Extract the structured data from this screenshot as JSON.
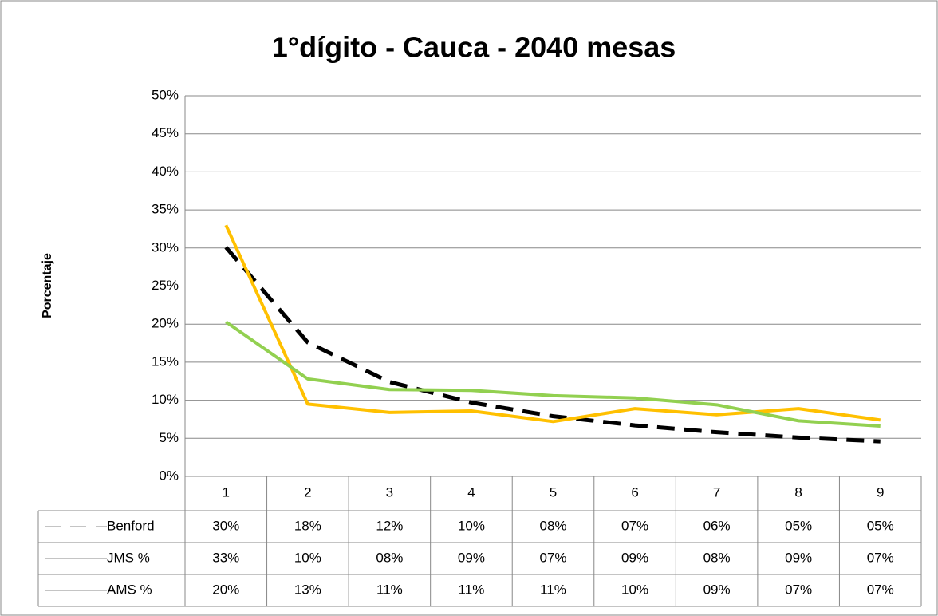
{
  "chart_data": {
    "type": "line",
    "title": "1°dígito - Cauca - 2040 mesas",
    "y_label": "Porcentaje",
    "categories": [
      "1",
      "2",
      "3",
      "4",
      "5",
      "6",
      "7",
      "8",
      "9"
    ],
    "series": [
      {
        "name": "Benford",
        "color": "#000000",
        "dashed": true,
        "values": [
          30.1,
          17.6,
          12.4,
          9.7,
          7.9,
          6.7,
          5.8,
          5.1,
          4.6
        ],
        "value_labels": [
          "30%",
          "18%",
          "12%",
          "10%",
          "08%",
          "07%",
          "06%",
          "05%",
          "05%"
        ]
      },
      {
        "name": "JMS %",
        "color": "#ffc000",
        "dashed": false,
        "values": [
          33,
          9.5,
          8.4,
          8.6,
          7.2,
          8.9,
          8.1,
          8.9,
          7.4
        ],
        "value_labels": [
          "33%",
          "10%",
          "08%",
          "09%",
          "07%",
          "09%",
          "08%",
          "09%",
          "07%"
        ]
      },
      {
        "name": "AMS %",
        "color": "#92d050",
        "dashed": false,
        "values": [
          20.3,
          12.8,
          11.4,
          11.3,
          10.6,
          10.3,
          9.4,
          7.3,
          6.6
        ],
        "value_labels": [
          "20%",
          "13%",
          "11%",
          "11%",
          "11%",
          "10%",
          "09%",
          "07%",
          "07%"
        ]
      }
    ],
    "ylim": [
      0,
      50
    ],
    "yticks": [
      {
        "value": 0,
        "label": "0%"
      },
      {
        "value": 5,
        "label": "5%"
      },
      {
        "value": 10,
        "label": "10%"
      },
      {
        "value": 15,
        "label": "15%"
      },
      {
        "value": 20,
        "label": "20%"
      },
      {
        "value": 25,
        "label": "25%"
      },
      {
        "value": 30,
        "label": "30%"
      },
      {
        "value": 35,
        "label": "35%"
      },
      {
        "value": 40,
        "label": "40%"
      },
      {
        "value": 45,
        "label": "45%"
      },
      {
        "value": 50,
        "label": "50%"
      }
    ],
    "grid": true
  }
}
